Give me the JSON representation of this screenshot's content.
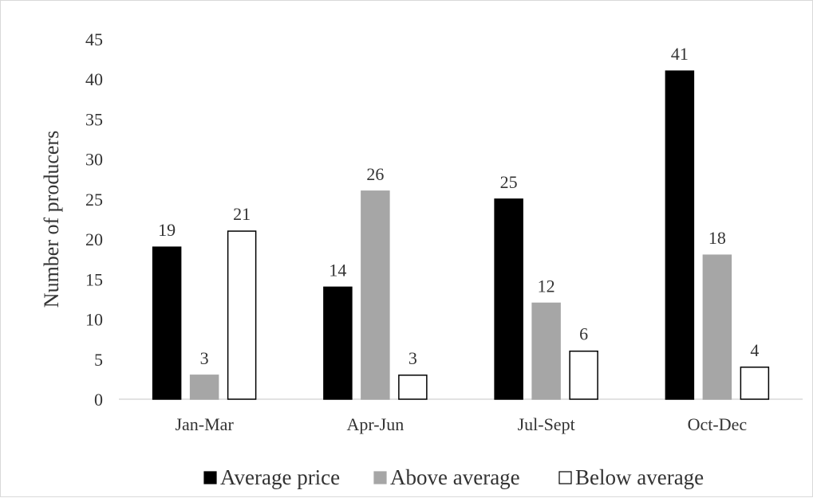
{
  "chart_data": {
    "type": "bar",
    "title": "",
    "xlabel": "",
    "ylabel": "Number of producers",
    "ylim": [
      0,
      45
    ],
    "ytick_step": 5,
    "grid": false,
    "legend_position": "bottom",
    "categories": [
      "Jan-Mar",
      "Apr-Jun",
      "Jul-Sept",
      "Oct-Dec"
    ],
    "series": [
      {
        "name": "Average price",
        "values": [
          19,
          14,
          25,
          41
        ],
        "color": "#000000",
        "stroke": "#000000"
      },
      {
        "name": "Above average",
        "values": [
          3,
          26,
          12,
          18
        ],
        "color": "#a6a6a6",
        "stroke": "#a6a6a6"
      },
      {
        "name": "Below average",
        "values": [
          21,
          3,
          6,
          4
        ],
        "color": "#ffffff",
        "stroke": "#000000"
      }
    ]
  }
}
